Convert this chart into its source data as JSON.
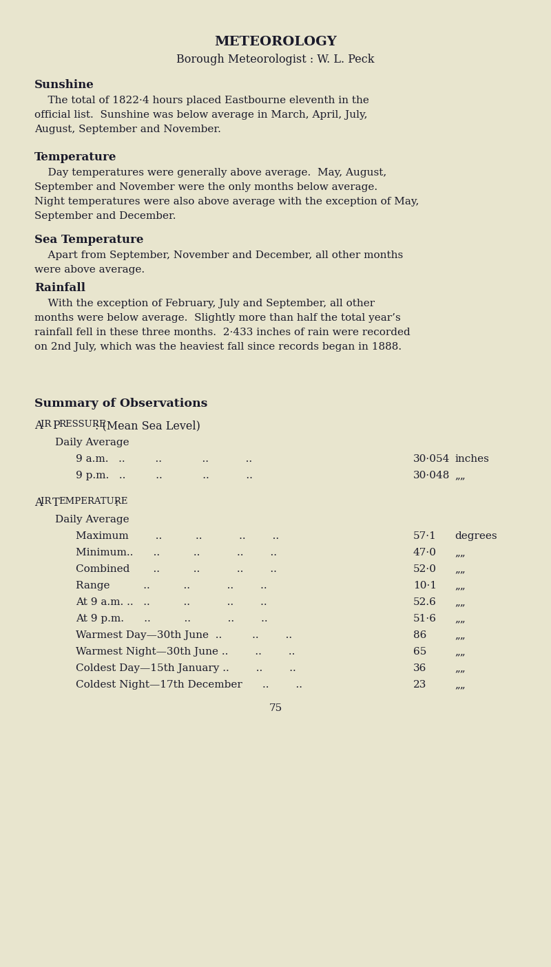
{
  "bg_color": "#e8e5ce",
  "text_color": "#1a1a2a",
  "title": "METEOROLOGY",
  "subtitle": "Borough Meteorologist : W. L. Peck",
  "sections": [
    {
      "heading": "Sunshine",
      "body_lines": [
        "    The total of 1822·4 hours placed Eastbourne eleventh in the",
        "official list.  Sunshine was below average in March, April, July,",
        "August, September and November."
      ]
    },
    {
      "heading": "Temperature",
      "body_lines": [
        "    Day temperatures were generally above average.  May, August,",
        "September and November were the only months below average.",
        "Night temperatures were also above average with the exception of May,",
        "September and December."
      ]
    },
    {
      "heading": "Sea Temperature",
      "body_lines": [
        "    Apart from September, November and December, all other months",
        "were above average."
      ]
    },
    {
      "heading": "Rainfall",
      "body_lines": [
        "    With the exception of February, July and September, all other",
        "months were below average.  Slightly more than half the total year’s",
        "rainfall fell in these three months.  2·433 inches of rain were recorded",
        "on 2nd July, which was the heaviest fall since records began in 1888."
      ]
    }
  ],
  "summary_heading": "Summary of Observations",
  "air_pressure_label": "Air Pressure:",
  "air_pressure_label2": " (Mean Sea Level)",
  "air_pressure_sub": "Daily Average",
  "air_pressure_rows": [
    {
      "label": "9 a.m.   ..         ..            ..           ..   ",
      "value": "30·054",
      "unit": "inches"
    },
    {
      "label": "9 p.m.   ..         ..            ..           ..   ",
      "value": "30·048",
      "unit": "„„"
    }
  ],
  "air_temp_label": "Air Temperature:",
  "air_temp_sub": "Daily Average",
  "air_temp_rows": [
    {
      "label": "Maximum        ..          ..           ..        ..   ",
      "value": "57·1",
      "unit": "degrees"
    },
    {
      "label": "Minimum..      ..          ..           ..        ..   ",
      "value": "47·0",
      "unit": "„„"
    },
    {
      "label": "Combined       ..          ..           ..        ..   ",
      "value": "52·0",
      "unit": "„„"
    },
    {
      "label": "Range          ..          ..           ..        ..   ",
      "value": "10·1",
      "unit": "„„"
    },
    {
      "label": "At 9 a.m. ..   ..          ..           ..        ..   ",
      "value": "52.6",
      "unit": "„„"
    },
    {
      "label": "At 9 p.m.      ..          ..           ..        ..   ",
      "value": "51·6",
      "unit": "„„"
    },
    {
      "label": "Warmest Day—30th June  ..         ..        ..   ",
      "value": "86",
      "unit": "„„"
    },
    {
      "label": "Warmest Night—30th June ..        ..        ..   ",
      "value": "65",
      "unit": "„„"
    },
    {
      "label": "Coldest Day—15th January ..        ..        ..   ",
      "value": "36",
      "unit": "„„"
    },
    {
      "label": "Coldest Night—17th December      ..        ..   ",
      "value": "23",
      "unit": "„„"
    }
  ],
  "page_number": "75"
}
